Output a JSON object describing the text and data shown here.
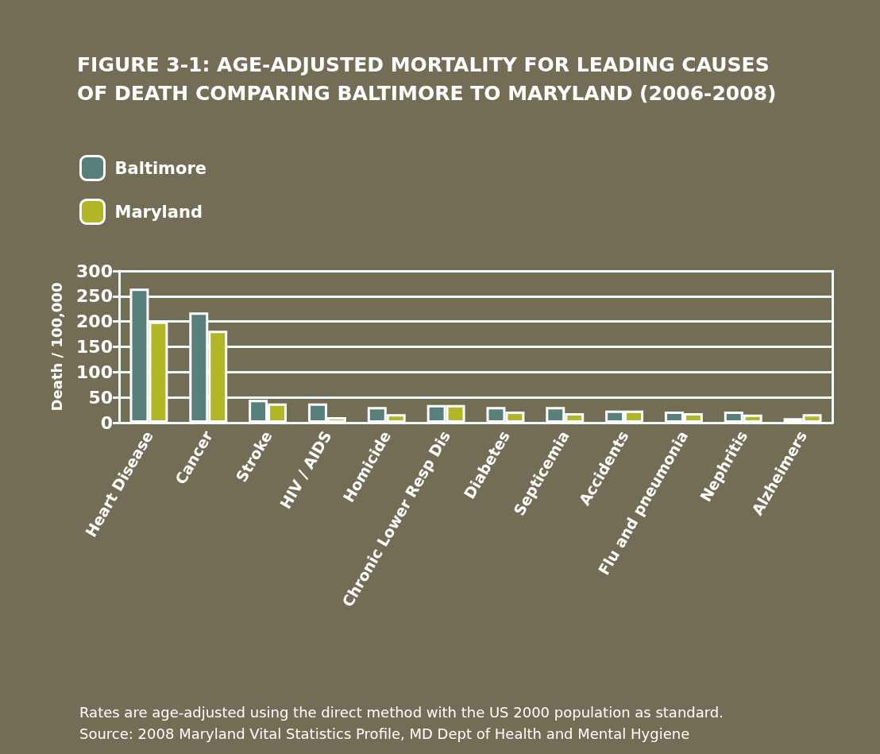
{
  "chart_data": {
    "type": "bar",
    "title": "FIGURE 3-1: AGE-ADJUSTED MORTALITY FOR LEADING CAUSES\nOF DEATH COMPARING BALTIMORE TO MARYLAND (2006-2008)",
    "ylabel": "Death / 100,000",
    "categories": [
      "Heart Disease",
      "Cancer",
      "Stroke",
      "HIV / AIDS",
      "Homicide",
      "Chronic Lower Resp Dis",
      "Diabetes",
      "Septicemia",
      "Accidents",
      "Flu and pneumonia",
      "Nephritis",
      "Alzheimers"
    ],
    "series": [
      {
        "name": "Baltimore",
        "color": "#568079",
        "values": [
          265,
          218,
          45,
          38,
          31,
          35,
          31,
          31,
          24,
          22,
          22,
          9
        ]
      },
      {
        "name": "Maryland",
        "color": "#b0b626",
        "values": [
          200,
          182,
          38,
          11,
          17,
          35,
          22,
          19,
          24,
          19,
          16,
          17
        ]
      }
    ],
    "ylim": [
      0,
      300
    ],
    "yticks": [
      0,
      50,
      100,
      150,
      200,
      250,
      300
    ],
    "grid": "y",
    "legend": "top left",
    "annotations": [
      "Rates are age-adjusted using the direct method with the US 2000 population as standard.",
      "Source: 2008 Maryland Vital Statistics Profile, MD Dept of Health and Mental Hygiene"
    ]
  }
}
